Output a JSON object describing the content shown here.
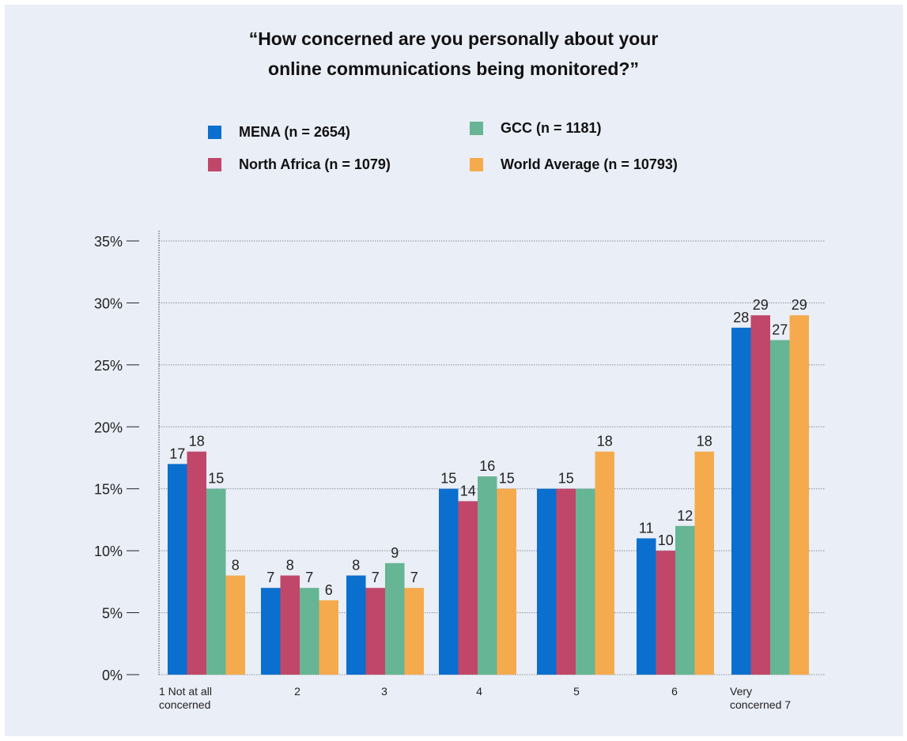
{
  "title_lines": [
    "“How concerned are you personally about your",
    "online communications being monitored?”"
  ],
  "colors": {
    "MENA": "#0a6fce",
    "North Africa": "#c0476a",
    "GCC": "#66b594",
    "World Average": "#f5ab4d"
  },
  "legend": [
    {
      "label": "MENA (n = 2654)",
      "color": "#0a6fce"
    },
    {
      "label": "GCC (n = 1181)",
      "color": "#66b594"
    },
    {
      "label": "North Africa (n = 1079)",
      "color": "#c0476a"
    },
    {
      "label": "World Average (n = 10793)",
      "color": "#f5ab4d"
    }
  ],
  "chart_data": {
    "type": "bar",
    "title": "“How concerned are you personally about your online communications being monitored?”",
    "categories": [
      "1 Not at all concerned",
      "2",
      "3",
      "4",
      "5",
      "6",
      "Very concerned 7"
    ],
    "category_label_lines": [
      [
        "1 Not at all",
        "concerned"
      ],
      [
        "2"
      ],
      [
        "3"
      ],
      [
        "4"
      ],
      [
        "5"
      ],
      [
        "6"
      ],
      [
        "Very",
        "concerned 7"
      ]
    ],
    "series": [
      {
        "name": "MENA (n = 2654)",
        "color": "#0a6fce",
        "values": [
          17,
          7,
          8,
          15,
          15,
          11,
          28
        ]
      },
      {
        "name": "North Africa (n = 1079)",
        "color": "#c0476a",
        "values": [
          18,
          8,
          7,
          14,
          15,
          10,
          29
        ]
      },
      {
        "name": "GCC (n = 1181)",
        "color": "#66b594",
        "values": [
          15,
          7,
          9,
          16,
          15,
          12,
          27
        ]
      },
      {
        "name": "World Average (n = 10793)",
        "color": "#f5ab4d",
        "values": [
          8,
          6,
          7,
          15,
          18,
          18,
          29
        ]
      }
    ],
    "data_labels": [
      [
        "17",
        "7",
        "8",
        "15",
        "",
        "11",
        "28"
      ],
      [
        "18",
        "8",
        "7",
        "14",
        "15",
        "10",
        "29"
      ],
      [
        "15",
        "7",
        "9",
        "16",
        "",
        "12",
        "27"
      ],
      [
        "8",
        "6",
        "7",
        "15",
        "18",
        "18",
        "29"
      ]
    ],
    "y_ticks": [
      0,
      5,
      10,
      15,
      20,
      25,
      30,
      35
    ],
    "y_tick_labels": [
      "0%",
      "5%",
      "10%",
      "15%",
      "20%",
      "25%",
      "30%",
      "35%"
    ],
    "ylim": [
      0,
      35
    ],
    "grid": true,
    "legend_position": "top"
  }
}
